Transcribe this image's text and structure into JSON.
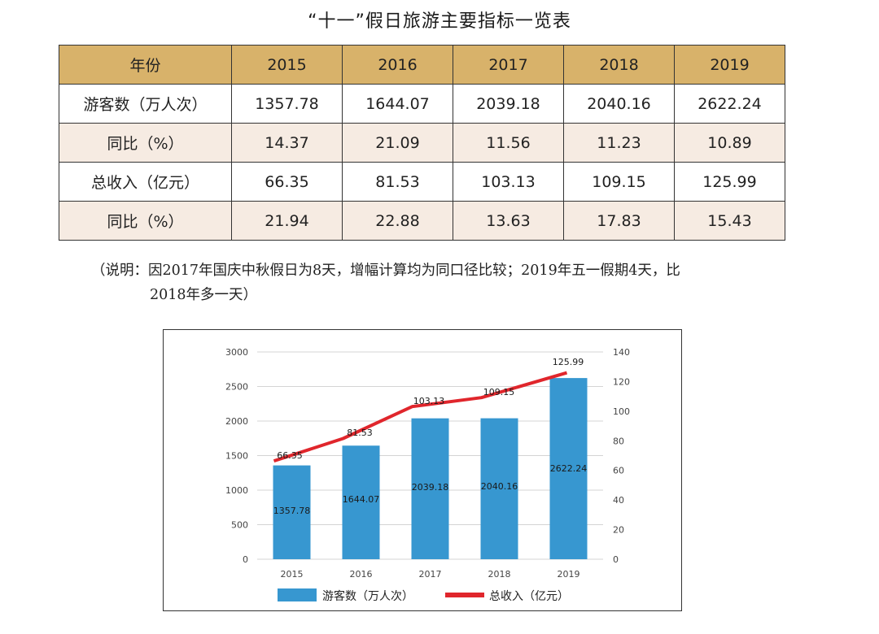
{
  "title": "“十一”假日旅游主要指标一览表",
  "table": {
    "header": [
      "年份",
      "2015",
      "2016",
      "2017",
      "2018",
      "2019"
    ],
    "rows": [
      {
        "label": "游客数（万人次）",
        "values": [
          "1357.78",
          "1644.07",
          "2039.18",
          "2040.16",
          "2622.24"
        ]
      },
      {
        "label": "同比（%）",
        "values": [
          "14.37",
          "21.09",
          "11.56",
          "11.23",
          "10.89"
        ]
      },
      {
        "label": "总收入（亿元）",
        "values": [
          "66.35",
          "81.53",
          "103.13",
          "109.15",
          "125.99"
        ]
      },
      {
        "label": "同比（%）",
        "values": [
          "21.94",
          "22.88",
          "13.63",
          "17.83",
          "15.43"
        ]
      }
    ]
  },
  "note": {
    "line1": "（说明：因2017年国庆中秋假日为8天，增幅计算均为同口径比较；2019年五一假期4天，比",
    "line2": "2018年多一天）"
  },
  "chart_data": {
    "type": "bar",
    "categories": [
      "2015",
      "2016",
      "2017",
      "2018",
      "2019"
    ],
    "series": [
      {
        "name": "游客数（万人次）",
        "type": "bar",
        "axis": "left",
        "values": [
          1357.78,
          1644.07,
          2039.18,
          2040.16,
          2622.24
        ],
        "labels": [
          "1357.78",
          "1644.07",
          "2039.18",
          "2040.16",
          "2622.24"
        ],
        "color": "#3797d0"
      },
      {
        "name": "总收入（亿元）",
        "type": "line",
        "axis": "right",
        "values": [
          66.35,
          81.53,
          103.13,
          109.15,
          125.99
        ],
        "labels": [
          "66.35",
          "81.53",
          "103.13",
          "109.15",
          "125.99"
        ],
        "color": "#e0262c"
      }
    ],
    "y_left": {
      "min": 0,
      "max": 3000,
      "ticks": [
        "0",
        "500",
        "1000",
        "1500",
        "2000",
        "2500",
        "3000"
      ]
    },
    "y_right": {
      "min": 0,
      "max": 140,
      "ticks": [
        "0",
        "20",
        "40",
        "60",
        "80",
        "100",
        "120",
        "140"
      ]
    },
    "grid": true,
    "legend_position": "bottom"
  }
}
